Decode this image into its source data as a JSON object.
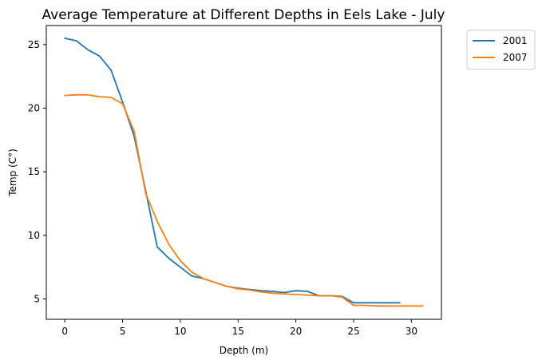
{
  "chart_data": {
    "type": "line",
    "title": "Average Temperature at Different Depths in Eels Lake - July",
    "xlabel": "Depth (m)",
    "ylabel": "Temp (C°)",
    "xlim": [
      -1.6,
      32.6
    ],
    "ylim": [
      3.4,
      26.5
    ],
    "xticks": [
      0,
      5,
      10,
      15,
      20,
      25,
      30
    ],
    "yticks": [
      5,
      10,
      15,
      20,
      25
    ],
    "grid": false,
    "legend_position": "outside-top-right",
    "series": [
      {
        "name": "2001",
        "color": "#1f77b4",
        "x": [
          0,
          1,
          2,
          3,
          4,
          5,
          6,
          7,
          8,
          9,
          10,
          11,
          12,
          13,
          14,
          15,
          16,
          17,
          18,
          19,
          20,
          21,
          22,
          23,
          24,
          25,
          26,
          27,
          28,
          29
        ],
        "y": [
          25.5,
          25.3,
          24.6,
          24.1,
          23.0,
          20.5,
          17.8,
          13.5,
          9.1,
          8.2,
          7.5,
          6.8,
          6.6,
          6.3,
          6.0,
          5.85,
          5.75,
          5.65,
          5.6,
          5.5,
          5.65,
          5.6,
          5.25,
          5.25,
          5.2,
          4.7,
          4.7,
          4.7,
          4.7,
          4.7
        ]
      },
      {
        "name": "2007",
        "color": "#ff7f0e",
        "x": [
          0,
          1,
          2,
          3,
          4,
          5,
          6,
          7,
          8,
          9,
          10,
          11,
          12,
          13,
          14,
          15,
          16,
          17,
          18,
          19,
          20,
          21,
          22,
          23,
          24,
          25,
          26,
          27,
          28,
          29,
          30,
          31
        ],
        "y": [
          21.0,
          21.05,
          21.05,
          20.9,
          20.85,
          20.35,
          18.2,
          13.3,
          11.1,
          9.3,
          8.0,
          7.1,
          6.6,
          6.3,
          6.0,
          5.8,
          5.7,
          5.55,
          5.45,
          5.4,
          5.35,
          5.3,
          5.25,
          5.25,
          5.15,
          4.5,
          4.5,
          4.45,
          4.45,
          4.45,
          4.45,
          4.45
        ]
      }
    ]
  }
}
